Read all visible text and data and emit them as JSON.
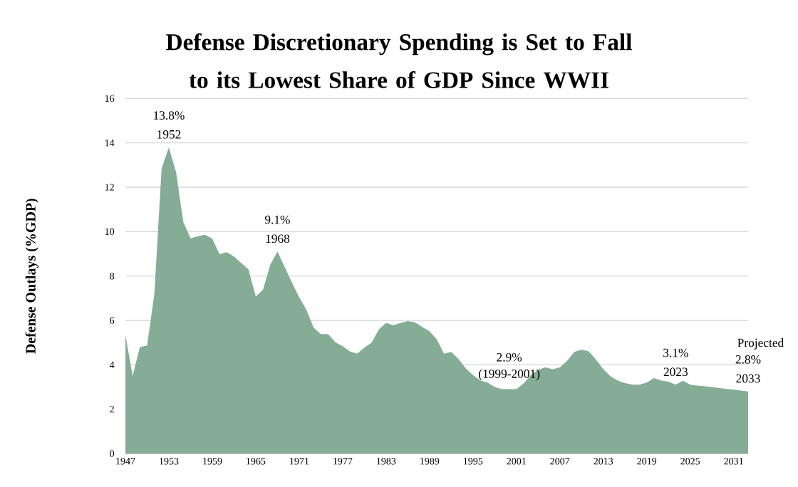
{
  "chart_data": {
    "type": "area",
    "title": "Defense Discretionary Spending is Set to Fall to its Lowest Share of GDP Since WWII",
    "ylabel": "Defense Outlays (%GDP)",
    "x": [
      1947,
      1948,
      1949,
      1950,
      1951,
      1952,
      1953,
      1954,
      1955,
      1956,
      1957,
      1958,
      1959,
      1960,
      1961,
      1962,
      1963,
      1964,
      1965,
      1966,
      1967,
      1968,
      1969,
      1970,
      1971,
      1972,
      1973,
      1974,
      1975,
      1976,
      1977,
      1978,
      1979,
      1980,
      1981,
      1982,
      1983,
      1984,
      1985,
      1986,
      1987,
      1988,
      1989,
      1990,
      1991,
      1992,
      1993,
      1994,
      1995,
      1996,
      1997,
      1998,
      1999,
      2000,
      2001,
      2002,
      2003,
      2004,
      2005,
      2006,
      2007,
      2008,
      2009,
      2010,
      2011,
      2012,
      2013,
      2014,
      2015,
      2016,
      2017,
      2018,
      2019,
      2020,
      2021,
      2022,
      2023,
      2024,
      2025,
      2026,
      2027,
      2028,
      2029,
      2030,
      2031,
      2032,
      2033
    ],
    "values": [
      5.35,
      3.5,
      4.8,
      4.87,
      7.2,
      12.85,
      13.8,
      12.67,
      10.43,
      9.7,
      9.79,
      9.86,
      9.68,
      8.98,
      9.07,
      8.88,
      8.58,
      8.29,
      7.08,
      7.38,
      8.5,
      9.1,
      8.4,
      7.7,
      7.04,
      6.47,
      5.67,
      5.38,
      5.38,
      5.01,
      4.84,
      4.6,
      4.5,
      4.77,
      5.0,
      5.59,
      5.89,
      5.78,
      5.89,
      5.97,
      5.91,
      5.7,
      5.51,
      5.14,
      4.5,
      4.58,
      4.26,
      3.84,
      3.54,
      3.3,
      3.2,
      3.0,
      2.9,
      2.9,
      2.9,
      3.16,
      3.54,
      3.78,
      3.88,
      3.8,
      3.88,
      4.18,
      4.58,
      4.68,
      4.6,
      4.23,
      3.8,
      3.48,
      3.29,
      3.18,
      3.1,
      3.1,
      3.2,
      3.4,
      3.29,
      3.24,
      3.1,
      3.28,
      3.1,
      3.06,
      3.03,
      2.99,
      2.95,
      2.91,
      2.88,
      2.84,
      2.8
    ],
    "color": "#85ad96",
    "xlim": [
      1947,
      2033
    ],
    "xticks": [
      1947,
      1953,
      1959,
      1965,
      1971,
      1977,
      1983,
      1989,
      1995,
      2001,
      2007,
      2013,
      2019,
      2025,
      2031
    ],
    "ylim": [
      0,
      16
    ],
    "yticks": [
      0,
      2,
      4,
      6,
      8,
      10,
      12,
      14,
      16
    ],
    "grid": "y",
    "annotations": [
      {
        "text": "13.8%",
        "x": 1953,
        "y": 13.8
      },
      {
        "text": "1952",
        "x": 1953,
        "y": 13.8
      },
      {
        "text": "9.1%",
        "x": 1968,
        "y": 9.1
      },
      {
        "text": "1968",
        "x": 1968,
        "y": 9.1
      },
      {
        "text": "2.9%",
        "x": 2000,
        "y": 2.9
      },
      {
        "text": "(1999-2001)",
        "x": 2000,
        "y": 2.9
      },
      {
        "text": "3.1%",
        "x": 2023,
        "y": 3.1
      },
      {
        "text": "2023",
        "x": 2023,
        "y": 3.1
      },
      "Projected",
      {
        "text": "2.8%",
        "x": 2033,
        "y": 2.8
      },
      {
        "text": "2033",
        "x": 2033,
        "y": 2.8
      }
    ]
  }
}
